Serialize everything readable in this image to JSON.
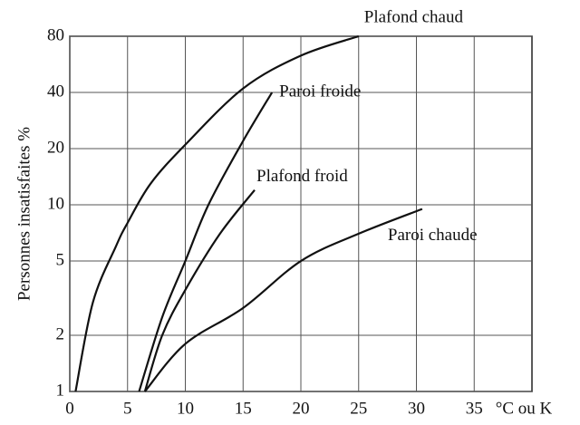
{
  "chart_data": {
    "type": "line",
    "y_label": "Personnes insatisfaites %",
    "x_label": "°C ou K",
    "xlim": [
      0,
      40
    ],
    "xticks": [
      0,
      5,
      10,
      15,
      20,
      25,
      30,
      35
    ],
    "ylim": [
      1,
      80
    ],
    "yticks": [
      1,
      2,
      5,
      10,
      20,
      40,
      80
    ],
    "ylog": true,
    "grid": true,
    "series": [
      {
        "name": "Plafond chaud",
        "color": "#111111",
        "x": [
          0.5,
          2,
          4,
          5,
          7,
          10,
          15,
          20,
          25
        ],
        "values": [
          1,
          3,
          6,
          8,
          13,
          21,
          42,
          63,
          80
        ]
      },
      {
        "name": "Paroi froide",
        "color": "#111111",
        "x": [
          6,
          8,
          10,
          12,
          15,
          17.5
        ],
        "values": [
          1,
          2.5,
          5,
          10,
          22,
          40
        ]
      },
      {
        "name": "Plafond froid",
        "color": "#111111",
        "x": [
          6.5,
          8,
          10,
          13,
          16
        ],
        "values": [
          1,
          2,
          3.5,
          7,
          12
        ]
      },
      {
        "name": "Paroi chaude",
        "color": "#111111",
        "x": [
          6.5,
          10,
          15,
          20,
          25,
          30.5
        ],
        "values": [
          1,
          1.8,
          2.8,
          5,
          7,
          9.5
        ]
      }
    ]
  }
}
